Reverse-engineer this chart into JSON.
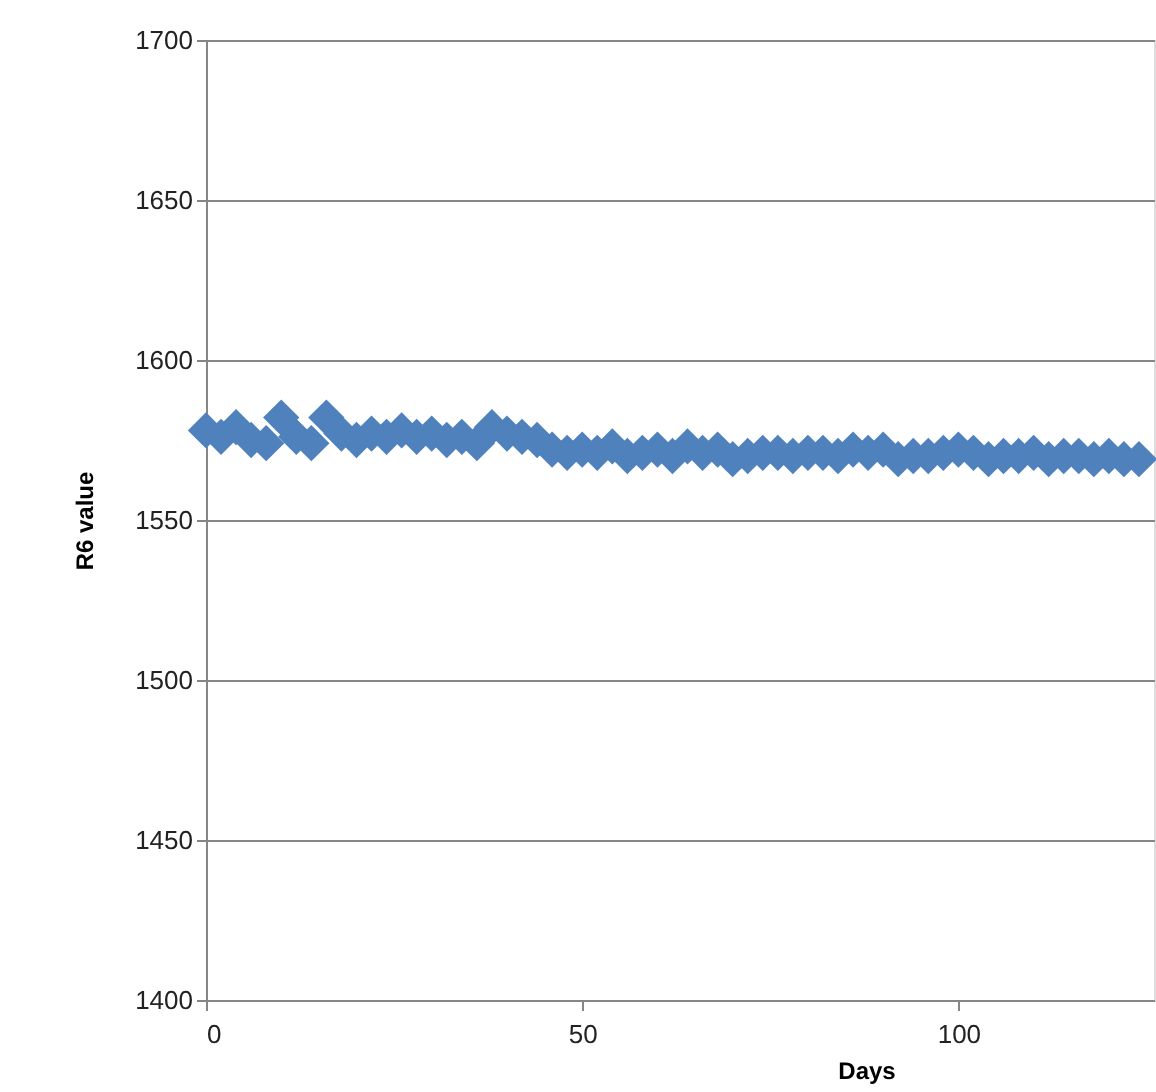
{
  "chart_data": {
    "type": "scatter",
    "xlabel": "Days",
    "ylabel": "R6 value",
    "x": [
      0,
      2,
      4,
      6,
      8,
      10,
      12,
      14,
      16,
      18,
      20,
      22,
      24,
      26,
      28,
      30,
      32,
      34,
      36,
      38,
      40,
      42,
      44,
      46,
      48,
      50,
      52,
      54,
      56,
      58,
      60,
      62,
      64,
      66,
      68,
      70,
      72,
      74,
      76,
      78,
      80,
      82,
      84,
      86,
      88,
      90,
      92,
      94,
      96,
      98,
      100,
      102,
      104,
      106,
      108,
      110,
      112,
      114,
      116,
      118,
      120,
      122,
      124
    ],
    "series": [
      {
        "color": "#4f81bd",
        "values": [
          1578,
          1576,
          1579,
          1575,
          1574,
          1582,
          1576,
          1574,
          1582,
          1577,
          1575,
          1577,
          1576,
          1578,
          1576,
          1577,
          1575,
          1576,
          1574,
          1579,
          1577,
          1576,
          1575,
          1572,
          1571,
          1572,
          1571,
          1573,
          1570,
          1571,
          1572,
          1570,
          1573,
          1571,
          1572,
          1569,
          1570,
          1571,
          1571,
          1570,
          1571,
          1571,
          1570,
          1572,
          1571,
          1572,
          1569,
          1570,
          1570,
          1571,
          1572,
          1571,
          1569,
          1570,
          1570,
          1571,
          1569,
          1570,
          1570,
          1569,
          1570,
          1569,
          1569
        ]
      }
    ],
    "xlim": [
      0,
      126
    ],
    "xticks": [
      0,
      50,
      100
    ],
    "ylim": [
      1400,
      1700
    ],
    "yticks": [
      1400,
      1450,
      1500,
      1550,
      1600,
      1650,
      1700
    ],
    "grid": "y",
    "marker": "diamond",
    "legend": false
  }
}
